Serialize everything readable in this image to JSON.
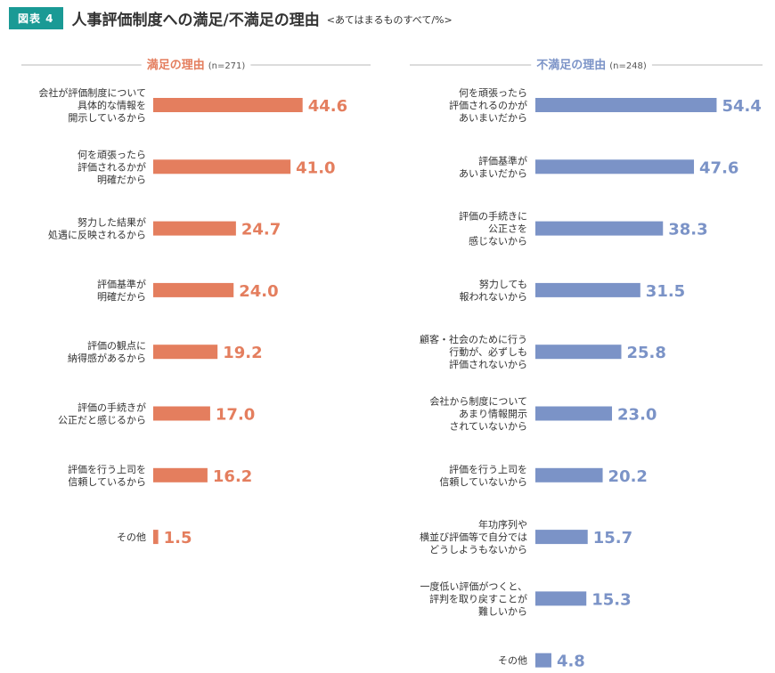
{
  "figure": {
    "badge": "図表 4",
    "title": "人事評価制度への満足/不満足の理由",
    "note": "<あてはまるものすべて/%>"
  },
  "colors": {
    "satisfied": "#e47e5e",
    "dissatisfied": "#7b93c7",
    "badge": "#1a9a95"
  },
  "chart_data": [
    {
      "type": "bar",
      "orientation": "horizontal",
      "title": "満足の理由",
      "n_label": "(n=271)",
      "categories": [
        "会社が評価制度について\n具体的な情報を\n開示しているから",
        "何を頑張ったら\n評価されるかが\n明確だから",
        "努力した結果が\n処遇に反映されるから",
        "評価基準が\n明確だから",
        "評価の観点に\n納得感があるから",
        "評価の手続きが\n公正だと感じるから",
        "評価を行う上司を\n信頼しているから",
        "その他"
      ],
      "values": [
        44.6,
        41.0,
        24.7,
        24.0,
        19.2,
        17.0,
        16.2,
        1.5
      ],
      "value_labels": [
        "44.6",
        "41.0",
        "24.7",
        "24.0",
        "19.2",
        "17.0",
        "16.2",
        "1.5"
      ],
      "color": "#e47e5e"
    },
    {
      "type": "bar",
      "orientation": "horizontal",
      "title": "不満足の理由",
      "n_label": "(n=248)",
      "categories": [
        "何を頑張ったら\n評価されるのかが\nあいまいだから",
        "評価基準が\nあいまいだから",
        "評価の手続きに\n公正さを\n感じないから",
        "努力しても\n報われないから",
        "顧客・社会のために行う\n行動が、必ずしも\n評価されないから",
        "会社から制度について\nあまり情報開示\nされていないから",
        "評価を行う上司を\n信頼していないから",
        "年功序列や\n横並び評価等で自分では\nどうしようもないから",
        "一度低い評価がつくと、\n評判を取り戻すことが\n難しいから",
        "その他"
      ],
      "values": [
        54.4,
        47.6,
        38.3,
        31.5,
        25.8,
        23.0,
        20.2,
        15.7,
        15.3,
        4.8
      ],
      "value_labels": [
        "54.4",
        "47.6",
        "38.3",
        "31.5",
        "25.8",
        "23.0",
        "20.2",
        "15.7",
        "15.3",
        "4.8"
      ],
      "color": "#7b93c7"
    }
  ]
}
